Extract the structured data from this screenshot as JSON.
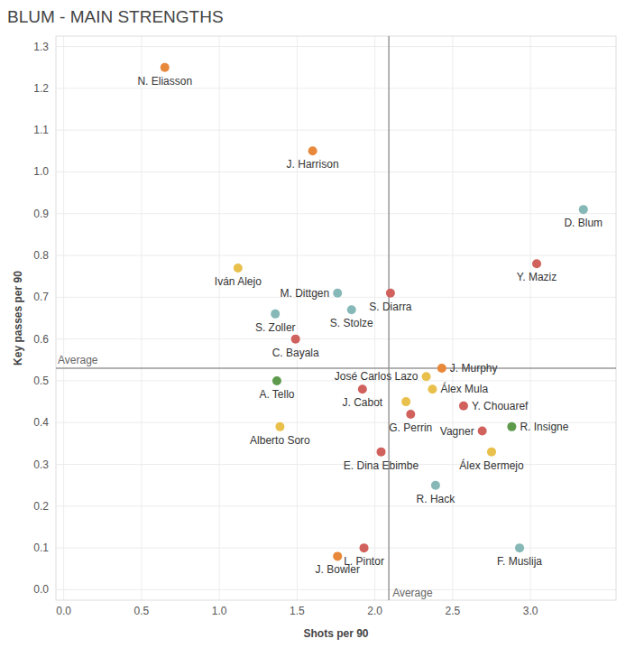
{
  "chart_data": {
    "type": "scatter",
    "title": "BLUM - MAIN STRENGTHS",
    "x_label": "Shots per 90",
    "y_label": "Key passes per 90",
    "labels": [
      "N. Eliasson",
      "J. Harrison",
      "D. Blum",
      "Y. Maziz",
      "Iván Alejo",
      "M. Dittgen",
      "S. Diarra",
      "S. Zoller",
      "S. Stolze",
      "C. Bayala",
      "J. Murphy",
      "A. Tello",
      "José Carlos Lazo",
      "Álex Mula",
      "J. Cabot",
      null,
      "G. Perrin",
      "Y. Chouaref",
      "Vagner",
      "R. Insigne",
      "Alberto Soro",
      "E. Dina Ebimbe",
      "Álex Bermejo",
      "R. Hack",
      "J. Bowler",
      "L. Pintor",
      "F. Muslija"
    ],
    "x": [
      0.65,
      1.6,
      3.34,
      3.04,
      1.12,
      1.76,
      2.1,
      1.36,
      1.85,
      1.49,
      2.43,
      1.37,
      2.33,
      2.37,
      1.92,
      2.2,
      2.23,
      2.57,
      2.69,
      2.88,
      1.39,
      2.04,
      2.75,
      2.39,
      1.76,
      1.93,
      2.93
    ],
    "values": [
      1.25,
      1.05,
      0.91,
      0.78,
      0.77,
      0.71,
      0.71,
      0.66,
      0.67,
      0.6,
      0.53,
      0.5,
      0.51,
      0.48,
      0.48,
      0.45,
      0.42,
      0.44,
      0.38,
      0.39,
      0.39,
      0.33,
      0.33,
      0.25,
      0.08,
      0.1,
      0.1
    ],
    "colors": [
      "#e8883a",
      "#e8883a",
      "#85b8b6",
      "#d1615d",
      "#e8c04b",
      "#85b8b6",
      "#d1615d",
      "#85b8b6",
      "#85b8b6",
      "#d1615d",
      "#e8883a",
      "#5d9a4c",
      "#e8c04b",
      "#e8c04b",
      "#d1615d",
      "#e8c04b",
      "#d1615d",
      "#d1615d",
      "#d1615d",
      "#5d9a4c",
      "#e8c04b",
      "#d1615d",
      "#e8c04b",
      "#85b8b6",
      "#e8883a",
      "#d1615d",
      "#85b8b6"
    ],
    "marker": "circle",
    "xlim": [
      -0.05,
      3.55
    ],
    "ylim": [
      -0.025,
      1.325
    ],
    "xticks": [
      {
        "value": 0,
        "label": "0.0"
      },
      0.5,
      {
        "value": 1,
        "label": "1.0"
      },
      1.5,
      {
        "value": 2,
        "label": "2.0"
      },
      2.5,
      {
        "value": 3,
        "label": "3.0"
      }
    ],
    "yticks": [
      {
        "value": 0,
        "label": "0.0"
      },
      0.1,
      0.2,
      0.3,
      0.4,
      0.5,
      0.6,
      0.7,
      0.8,
      0.9,
      {
        "value": 1,
        "label": "1.0"
      },
      1.1,
      1.2,
      1.3
    ],
    "grid": true,
    "reference_lines": [
      {
        "axis": "x",
        "value": 2.09,
        "label": "Average"
      },
      {
        "axis": "y",
        "value": 0.53,
        "label": "Average"
      }
    ]
  }
}
